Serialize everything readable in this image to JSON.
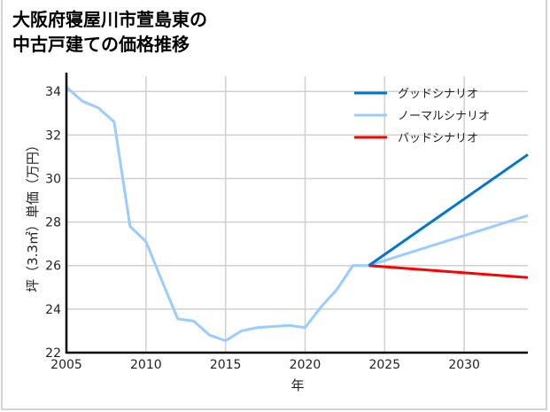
{
  "chart_data": {
    "type": "line",
    "title_lines": [
      "大阪府寝屋川市萱島東の",
      "中古戸建ての価格推移"
    ],
    "xlabel": "年",
    "ylabel": "坪（3.3㎡）単価（万円）",
    "xlim": [
      2005,
      2034
    ],
    "ylim": [
      22,
      34.7
    ],
    "xticks": [
      2005,
      2010,
      2015,
      2020,
      2025,
      2030
    ],
    "yticks": [
      22,
      24,
      26,
      28,
      30,
      32,
      34
    ],
    "grid": true,
    "legend_position": "top-right",
    "historical": {
      "color": "#99ccff",
      "x": [
        2005,
        2006,
        2007,
        2008,
        2009,
        2010,
        2011,
        2012,
        2013,
        2014,
        2015,
        2016,
        2017,
        2018,
        2019,
        2020,
        2021,
        2022,
        2023,
        2024
      ],
      "y": [
        34.2,
        33.55,
        33.25,
        32.6,
        27.8,
        27.1,
        25.3,
        23.55,
        23.45,
        22.8,
        22.55,
        23.0,
        23.15,
        23.2,
        23.25,
        23.15,
        24.1,
        24.9,
        26.0,
        26.0
      ]
    },
    "series": [
      {
        "name": "グッドシナリオ",
        "color": "#0077cc",
        "x": [
          2024,
          2034
        ],
        "y": [
          26.0,
          31.1
        ]
      },
      {
        "name": "ノーマルシナリオ",
        "color": "#99ccff",
        "x": [
          2024,
          2034
        ],
        "y": [
          26.0,
          28.3
        ]
      },
      {
        "name": "バッドシナリオ",
        "color": "#ff0000",
        "x": [
          2024,
          2034
        ],
        "y": [
          26.0,
          25.45
        ]
      }
    ]
  }
}
